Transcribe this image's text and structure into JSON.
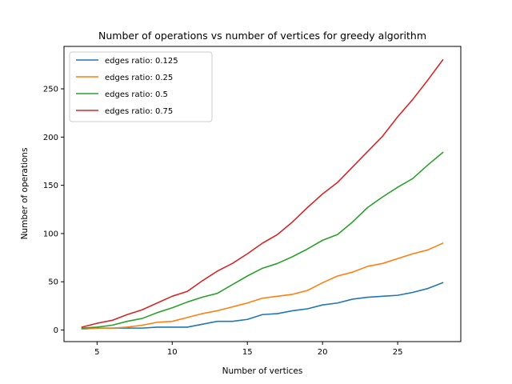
{
  "chart_data": {
    "type": "line",
    "title": "Number of operations vs number of vertices for greedy algorithm",
    "xlabel": "Number of vertices",
    "ylabel": "Number of operations",
    "xlim": [
      2.8,
      29.2
    ],
    "ylim": [
      -12,
      294
    ],
    "xticks": [
      5,
      10,
      15,
      20,
      25
    ],
    "yticks": [
      0,
      50,
      100,
      150,
      200,
      250
    ],
    "grid": false,
    "legend_position": "top-left",
    "x": [
      4,
      5,
      6,
      7,
      8,
      9,
      10,
      11,
      12,
      13,
      14,
      15,
      16,
      17,
      18,
      19,
      20,
      21,
      22,
      23,
      24,
      25,
      26,
      27,
      28
    ],
    "series": [
      {
        "name": "edges ratio: 0.125",
        "color": "#1f77b4",
        "values": [
          1,
          2,
          2,
          2,
          2,
          3,
          3,
          3,
          6,
          9,
          9,
          11,
          16,
          17,
          20,
          22,
          26,
          28,
          32,
          34,
          35,
          36,
          39,
          43,
          49
        ]
      },
      {
        "name": "edges ratio: 0.25",
        "color": "#ff7f0e",
        "values": [
          1,
          2,
          2,
          3,
          5,
          8,
          9,
          13,
          17,
          20,
          24,
          28,
          33,
          35,
          37,
          41,
          49,
          56,
          60,
          66,
          69,
          74,
          79,
          83,
          90
        ]
      },
      {
        "name": "edges ratio: 0.5",
        "color": "#2ca02c",
        "values": [
          2,
          3,
          5,
          9,
          12,
          18,
          23,
          29,
          34,
          38,
          47,
          56,
          64,
          69,
          76,
          84,
          93,
          99,
          112,
          127,
          138,
          148,
          157,
          171,
          184
        ]
      },
      {
        "name": "edges ratio: 0.75",
        "color": "#d62728",
        "values": [
          3,
          7,
          10,
          16,
          21,
          28,
          35,
          40,
          51,
          61,
          69,
          79,
          90,
          99,
          112,
          127,
          141,
          153,
          169,
          185,
          201,
          221,
          239,
          259,
          280
        ]
      }
    ]
  }
}
